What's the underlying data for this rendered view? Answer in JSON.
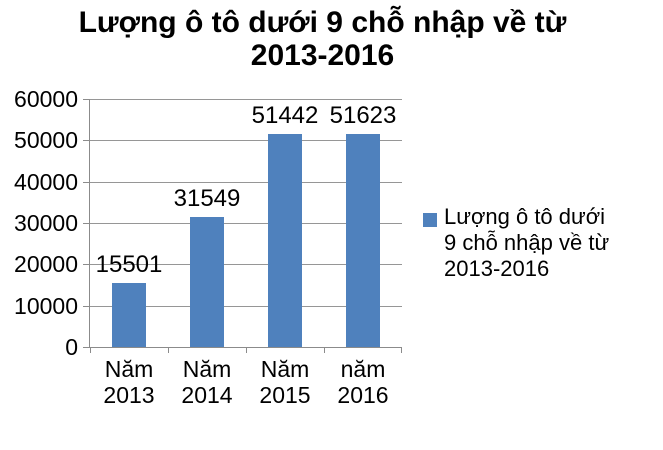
{
  "chart_data": {
    "type": "bar",
    "title": "Lượng ô tô dưới 9 chỗ nhập về từ 2013-2016",
    "title_lines": [
      "Lượng ô tô dưới 9 chỗ nhập về từ",
      "2013-2016"
    ],
    "categories": [
      "Năm 2013",
      "Năm 2014",
      "Năm 2015",
      "năm 2016"
    ],
    "category_label_lines": [
      [
        "Năm",
        "2013"
      ],
      [
        "Năm",
        "2014"
      ],
      [
        "Năm",
        "2015"
      ],
      [
        "năm",
        "2016"
      ]
    ],
    "series": [
      {
        "name": "Lượng ô tô dưới 9 chỗ nhập về từ 2013-2016",
        "values": [
          15501,
          31549,
          51442,
          51623
        ]
      }
    ],
    "value_labels": [
      "15501",
      "31549",
      "51442",
      "51623"
    ],
    "xlabel": "",
    "ylabel": "",
    "ylim": [
      0,
      60000
    ],
    "yticks": [
      0,
      10000,
      20000,
      30000,
      40000,
      50000,
      60000
    ],
    "ytick_labels": [
      "0",
      "10000",
      "20000",
      "30000",
      "40000",
      "50000",
      "60000"
    ],
    "grid": "horizontal",
    "legend": {
      "position": "right",
      "lines": [
        "Lượng ô tô dưới",
        "9 chỗ nhập về từ",
        "2013-2016"
      ]
    },
    "colors": {
      "bar": "#4f81bd",
      "gridline": "#969696",
      "axis": "#8b8b8b",
      "text": "#000000",
      "background": "#ffffff"
    }
  }
}
